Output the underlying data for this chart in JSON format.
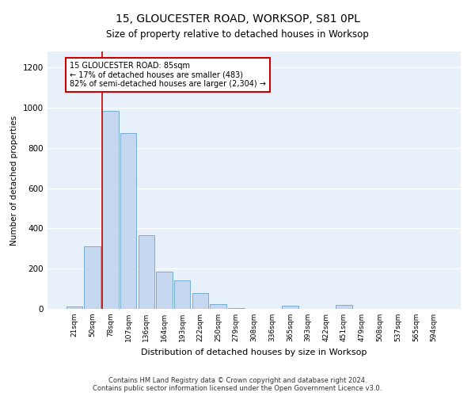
{
  "title": "15, GLOUCESTER ROAD, WORKSOP, S81 0PL",
  "subtitle": "Size of property relative to detached houses in Worksop",
  "xlabel": "Distribution of detached houses by size in Worksop",
  "ylabel": "Number of detached properties",
  "bar_color": "#c5d8f0",
  "bar_edge_color": "#7aadd4",
  "background_color": "#e8f0fa",
  "grid_color": "#ffffff",
  "annotation_box_color": "#cc0000",
  "vline_color": "#cc0000",
  "vline_x_index": 2,
  "annotation_text": "15 GLOUCESTER ROAD: 85sqm\n← 17% of detached houses are smaller (483)\n82% of semi-detached houses are larger (2,304) →",
  "footer": "Contains HM Land Registry data © Crown copyright and database right 2024.\nContains public sector information licensed under the Open Government Licence v3.0.",
  "categories": [
    "21sqm",
    "50sqm",
    "78sqm",
    "107sqm",
    "136sqm",
    "164sqm",
    "193sqm",
    "222sqm",
    "250sqm",
    "279sqm",
    "308sqm",
    "336sqm",
    "365sqm",
    "393sqm",
    "422sqm",
    "451sqm",
    "479sqm",
    "508sqm",
    "537sqm",
    "565sqm",
    "594sqm"
  ],
  "values": [
    10,
    310,
    985,
    875,
    365,
    185,
    140,
    80,
    25,
    2,
    0,
    0,
    15,
    0,
    0,
    20,
    0,
    0,
    0,
    0,
    0
  ],
  "ylim": [
    0,
    1280
  ],
  "yticks": [
    0,
    200,
    400,
    600,
    800,
    1000,
    1200
  ],
  "title_fontsize": 10,
  "subtitle_fontsize": 8.5,
  "xlabel_fontsize": 8,
  "ylabel_fontsize": 7.5,
  "xtick_fontsize": 6.5,
  "ytick_fontsize": 7.5,
  "footer_fontsize": 6,
  "annot_fontsize": 7
}
